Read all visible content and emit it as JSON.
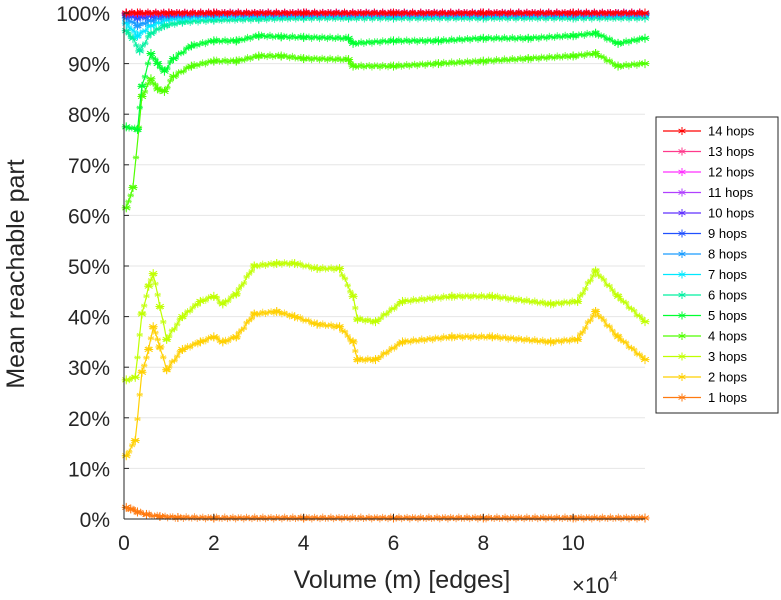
{
  "chart_data": {
    "type": "line",
    "title": "",
    "xlabel": "Volume (m) [edges]",
    "ylabel": "Mean reachable part",
    "x_multiplier_label": "×10",
    "x_multiplier_exponent": "4",
    "xlim": [
      0,
      11.6
    ],
    "ylim": [
      0,
      100
    ],
    "xticks": [
      0,
      2,
      4,
      6,
      8,
      10
    ],
    "xtick_labels": [
      "0",
      "2",
      "4",
      "6",
      "8",
      "10"
    ],
    "yticks": [
      0,
      10,
      20,
      30,
      40,
      50,
      60,
      70,
      80,
      90,
      100
    ],
    "ytick_labels": [
      "0%",
      "10%",
      "20%",
      "30%",
      "40%",
      "50%",
      "60%",
      "70%",
      "80%",
      "90%",
      "100%"
    ],
    "grid": "horizontal",
    "legend_position": "right",
    "marker": "asterisk",
    "series": [
      {
        "name": "14 hops",
        "color": "#ff0000",
        "x": [
          0.05,
          0.3,
          1,
          2,
          4,
          6,
          8,
          10,
          11.6
        ],
        "values": [
          100,
          100,
          100,
          100,
          100,
          100,
          100,
          100,
          100
        ]
      },
      {
        "name": "13 hops",
        "color": "#ff3a8c",
        "x": [
          0.05,
          0.3,
          1,
          2,
          4,
          6,
          8,
          10,
          11.6
        ],
        "values": [
          100,
          100,
          100,
          100,
          100,
          100,
          100,
          100,
          100
        ]
      },
      {
        "name": "12 hops",
        "color": "#ff30ff",
        "x": [
          0.05,
          0.3,
          1,
          2,
          4,
          6,
          8,
          10,
          11.6
        ],
        "values": [
          100,
          100,
          100,
          100,
          100,
          100,
          100,
          100,
          100
        ]
      },
      {
        "name": "11 hops",
        "color": "#b040ff",
        "x": [
          0.05,
          0.3,
          1,
          2,
          4,
          6,
          8,
          10,
          11.6
        ],
        "values": [
          100,
          99.9,
          100,
          100,
          100,
          100,
          100,
          100,
          100
        ]
      },
      {
        "name": "10 hops",
        "color": "#6030ff",
        "x": [
          0.05,
          0.3,
          1,
          2,
          4,
          6,
          8,
          10,
          11.6
        ],
        "values": [
          99.8,
          99.6,
          99.9,
          100,
          100,
          100,
          100,
          100,
          100
        ]
      },
      {
        "name": "9 hops",
        "color": "#2050ff",
        "x": [
          0.05,
          0.3,
          1,
          2,
          4,
          6,
          8,
          10,
          11.6
        ],
        "values": [
          99.5,
          99,
          99.7,
          99.9,
          99.9,
          99.9,
          99.9,
          99.9,
          99.9
        ]
      },
      {
        "name": "8 hops",
        "color": "#1a9cff",
        "x": [
          0.05,
          0.3,
          0.6,
          1,
          2,
          4,
          6,
          8,
          10,
          11.6
        ],
        "values": [
          99,
          97.5,
          98.5,
          99.4,
          99.7,
          99.7,
          99.7,
          99.7,
          99.7,
          99.7
        ]
      },
      {
        "name": "7 hops",
        "color": "#00e8ff",
        "x": [
          0.05,
          0.3,
          0.6,
          1,
          2,
          4,
          6,
          8,
          10,
          11.6
        ],
        "values": [
          98,
          95.5,
          97.5,
          98.8,
          99.3,
          99.5,
          99.5,
          99.5,
          99.5,
          99.5
        ]
      },
      {
        "name": "6 hops",
        "color": "#00f0a0",
        "x": [
          0.05,
          0.2,
          0.35,
          0.6,
          0.9,
          1.3,
          2,
          3,
          4,
          5,
          6,
          8,
          10,
          11.6
        ],
        "values": [
          96.5,
          95,
          92.5,
          96,
          97.5,
          98.2,
          98.6,
          98.8,
          99,
          99,
          99,
          99,
          99,
          99
        ]
      },
      {
        "name": "5 hops",
        "color": "#00ff30",
        "x": [
          0.05,
          0.3,
          0.4,
          0.6,
          0.75,
          0.9,
          1.1,
          1.5,
          2,
          2.5,
          3,
          3.5,
          4,
          5,
          5.1,
          6,
          7,
          8,
          9,
          10,
          10.5,
          11,
          11.6
        ],
        "values": [
          77.5,
          77,
          85.5,
          92,
          90,
          88.5,
          91,
          93.5,
          94.5,
          94.5,
          95.5,
          95.3,
          95.2,
          95,
          94,
          94.5,
          94.5,
          95,
          95,
          95.5,
          96,
          94,
          95
        ]
      },
      {
        "name": "4 hops",
        "color": "#50ff00",
        "x": [
          0.05,
          0.2,
          0.4,
          0.6,
          0.75,
          0.9,
          1.1,
          1.5,
          2,
          2.5,
          3,
          3.5,
          4,
          5,
          5.1,
          6,
          7,
          8,
          9,
          10,
          10.5,
          11,
          11.6
        ],
        "values": [
          61.5,
          65.5,
          83.5,
          87,
          85,
          84.5,
          87.5,
          89.5,
          90.5,
          90.5,
          91.5,
          91.5,
          91,
          90.8,
          89.5,
          89.5,
          90,
          90.5,
          91,
          91.5,
          92,
          89.5,
          90
        ]
      },
      {
        "name": "3 hops",
        "color": "#c0ff00",
        "x": [
          0.05,
          0.25,
          0.4,
          0.55,
          0.65,
          0.8,
          0.95,
          1.3,
          1.7,
          2,
          2.2,
          2.5,
          2.9,
          3.4,
          3.8,
          4.3,
          4.8,
          5.1,
          5.2,
          5.6,
          6.2,
          7.3,
          8.2,
          9.5,
          10.1,
          10.5,
          11.0,
          11.6
        ],
        "values": [
          27.5,
          28,
          40.5,
          46,
          48.5,
          42,
          35.5,
          40,
          43,
          44,
          42.5,
          44.5,
          50,
          50.5,
          50.5,
          49.5,
          49.5,
          44,
          39.5,
          39,
          43,
          44,
          44,
          42.5,
          43,
          49,
          44,
          39
        ]
      },
      {
        "name": "2 hops",
        "color": "#ffd000",
        "x": [
          0.05,
          0.25,
          0.4,
          0.55,
          0.65,
          0.8,
          0.95,
          1.3,
          1.7,
          2,
          2.2,
          2.5,
          2.9,
          3.4,
          3.8,
          4.3,
          4.8,
          5.1,
          5.2,
          5.6,
          6.2,
          7.3,
          8.2,
          9.5,
          10.1,
          10.5,
          11.0,
          11.6
        ],
        "values": [
          12.5,
          15.5,
          29,
          33.5,
          38,
          34,
          29.5,
          33.5,
          35,
          36,
          35,
          36,
          40.5,
          41,
          40,
          38.5,
          38,
          35,
          31.5,
          31.5,
          35,
          36,
          36,
          35,
          35.5,
          41,
          36,
          31.5
        ]
      },
      {
        "name": "1 hops",
        "color": "#ff7a10",
        "x": [
          0.05,
          0.15,
          0.3,
          0.5,
          0.8,
          1.2,
          2,
          4,
          6,
          8,
          10,
          11.6
        ],
        "values": [
          2.3,
          2,
          1.4,
          0.9,
          0.5,
          0.3,
          0.2,
          0.2,
          0.2,
          0.2,
          0.2,
          0.2
        ]
      }
    ]
  }
}
